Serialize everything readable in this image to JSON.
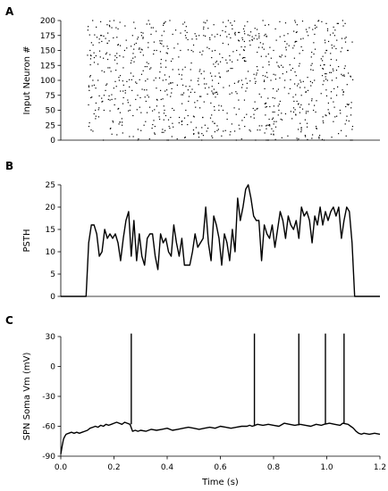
{
  "chart_data": [
    {
      "panel": "A",
      "type": "scatter",
      "title": "",
      "xlabel": "",
      "ylabel": "Input Neuron #",
      "xlim": [
        0.0,
        1.2
      ],
      "ylim": [
        0,
        200
      ],
      "xticks": [],
      "yticks": [
        "0",
        "25",
        "50",
        "75",
        "100",
        "125",
        "150",
        "175",
        "200"
      ],
      "stimulus_window": [
        0.1,
        1.1
      ],
      "neuron_count": 200,
      "marker_color": "#000000",
      "spike_times_sample": [
        {
          "neuron": 200,
          "times": [
            0.12,
            0.2,
            0.33,
            0.41,
            0.55,
            0.63,
            0.76,
            0.88,
            0.97,
            1.06
          ]
        },
        {
          "neuron": 175,
          "times": [
            0.15,
            0.27,
            0.38,
            0.52,
            0.6,
            0.71,
            0.84,
            0.93,
            1.03
          ]
        },
        {
          "neuron": 150,
          "times": [
            0.11,
            0.24,
            0.36,
            0.45,
            0.58,
            0.69,
            0.8,
            0.91,
            1.0,
            1.08
          ]
        },
        {
          "neuron": 100,
          "times": [
            0.14,
            0.22,
            0.35,
            0.49,
            0.57,
            0.68,
            0.79,
            0.9,
            1.02
          ]
        },
        {
          "neuron": 50,
          "times": [
            0.13,
            0.26,
            0.39,
            0.47,
            0.61,
            0.73,
            0.82,
            0.95,
            1.05
          ]
        },
        {
          "neuron": 0,
          "times": [
            0.16,
            0.29,
            0.4,
            0.53,
            0.66,
            0.78,
            0.89,
            0.99,
            1.09
          ]
        }
      ]
    },
    {
      "panel": "B",
      "type": "line",
      "title": "",
      "xlabel": "",
      "ylabel": "PSTH",
      "xlim": [
        0.0,
        1.2
      ],
      "ylim": [
        0,
        25
      ],
      "xticks": [],
      "yticks": [
        "0",
        "5",
        "10",
        "15",
        "20",
        "25"
      ],
      "x": [
        0.0,
        0.095,
        0.105,
        0.115,
        0.125,
        0.135,
        0.145,
        0.155,
        0.165,
        0.175,
        0.185,
        0.195,
        0.205,
        0.215,
        0.225,
        0.235,
        0.245,
        0.255,
        0.265,
        0.275,
        0.285,
        0.295,
        0.305,
        0.315,
        0.325,
        0.335,
        0.345,
        0.355,
        0.365,
        0.375,
        0.385,
        0.395,
        0.405,
        0.415,
        0.425,
        0.435,
        0.445,
        0.455,
        0.465,
        0.475,
        0.485,
        0.495,
        0.505,
        0.515,
        0.525,
        0.535,
        0.545,
        0.555,
        0.565,
        0.575,
        0.585,
        0.595,
        0.605,
        0.615,
        0.625,
        0.635,
        0.645,
        0.655,
        0.665,
        0.675,
        0.685,
        0.695,
        0.705,
        0.715,
        0.725,
        0.735,
        0.745,
        0.755,
        0.765,
        0.775,
        0.785,
        0.795,
        0.805,
        0.815,
        0.825,
        0.835,
        0.845,
        0.855,
        0.865,
        0.875,
        0.885,
        0.895,
        0.905,
        0.915,
        0.925,
        0.935,
        0.945,
        0.955,
        0.965,
        0.975,
        0.985,
        0.995,
        1.005,
        1.015,
        1.025,
        1.035,
        1.045,
        1.055,
        1.065,
        1.075,
        1.085,
        1.095,
        1.105,
        1.2
      ],
      "values": [
        0,
        0,
        12,
        16,
        16,
        14,
        9,
        10,
        15,
        13,
        14,
        13,
        14,
        12,
        8,
        13,
        17,
        19,
        9,
        17,
        8,
        14,
        9,
        7,
        13,
        14,
        14,
        9,
        6,
        14,
        12,
        13,
        10,
        9,
        16,
        12,
        9,
        13,
        7,
        7,
        7,
        10,
        14,
        11,
        12,
        13,
        20,
        12,
        8,
        18,
        16,
        13,
        7,
        14,
        12,
        8,
        15,
        10,
        22,
        17,
        20,
        24,
        25,
        22,
        18,
        17,
        17,
        8,
        16,
        14,
        13,
        16,
        11,
        15,
        19,
        17,
        13,
        18,
        16,
        15,
        17,
        13,
        20,
        18,
        19,
        17,
        12,
        18,
        16,
        20,
        16,
        19,
        17,
        19,
        20,
        18,
        20,
        13,
        17,
        20,
        19,
        12,
        0,
        0
      ]
    },
    {
      "panel": "C",
      "type": "line",
      "title": "",
      "xlabel": "Time (s)",
      "ylabel": "SPN Soma Vm (mV)",
      "xlim": [
        0.0,
        1.2
      ],
      "ylim": [
        -90,
        30
      ],
      "xticks": [
        "0.0",
        "0.2",
        "0.4",
        "0.6",
        "0.8",
        "1.0",
        "1.2"
      ],
      "yticks": [
        "-90",
        "-60",
        "-30",
        "0",
        "30"
      ],
      "spike_times": [
        0.265,
        0.728,
        0.895,
        0.995,
        1.065
      ],
      "spike_peak_mv": 33,
      "x": [
        0.0,
        0.005,
        0.01,
        0.015,
        0.02,
        0.03,
        0.04,
        0.05,
        0.06,
        0.07,
        0.08,
        0.09,
        0.1,
        0.11,
        0.12,
        0.13,
        0.14,
        0.15,
        0.16,
        0.17,
        0.18,
        0.19,
        0.2,
        0.21,
        0.22,
        0.23,
        0.24,
        0.25,
        0.26,
        0.27,
        0.28,
        0.29,
        0.3,
        0.32,
        0.34,
        0.36,
        0.38,
        0.4,
        0.42,
        0.44,
        0.46,
        0.48,
        0.5,
        0.52,
        0.54,
        0.56,
        0.58,
        0.6,
        0.62,
        0.64,
        0.66,
        0.68,
        0.7,
        0.71,
        0.72,
        0.74,
        0.76,
        0.78,
        0.8,
        0.82,
        0.84,
        0.86,
        0.88,
        0.9,
        0.92,
        0.94,
        0.96,
        0.98,
        0.99,
        1.01,
        1.03,
        1.05,
        1.06,
        1.08,
        1.09,
        1.1,
        1.11,
        1.12,
        1.13,
        1.14,
        1.16,
        1.18,
        1.2
      ],
      "values": [
        -88,
        -80,
        -73,
        -70,
        -68,
        -67,
        -66,
        -67,
        -66,
        -67,
        -66,
        -65,
        -64,
        -62,
        -61,
        -60,
        -61,
        -59,
        -60,
        -58,
        -59,
        -58,
        -57,
        -56,
        -57,
        -58,
        -56,
        -57,
        -58,
        -65,
        -64,
        -65,
        -64,
        -65,
        -63,
        -64,
        -63,
        -62,
        -64,
        -63,
        -62,
        -61,
        -62,
        -63,
        -62,
        -61,
        -62,
        -60,
        -61,
        -62,
        -61,
        -60,
        -60,
        -59,
        -60,
        -58,
        -59,
        -58,
        -59,
        -60,
        -57,
        -58,
        -59,
        -58,
        -59,
        -60,
        -58,
        -59,
        -58,
        -57,
        -58,
        -59,
        -57,
        -58,
        -60,
        -62,
        -65,
        -67,
        -68,
        -67,
        -68,
        -67,
        -68
      ]
    }
  ],
  "figure": {
    "panel_letters": [
      "A",
      "B",
      "C"
    ],
    "line_color": "#000000"
  }
}
